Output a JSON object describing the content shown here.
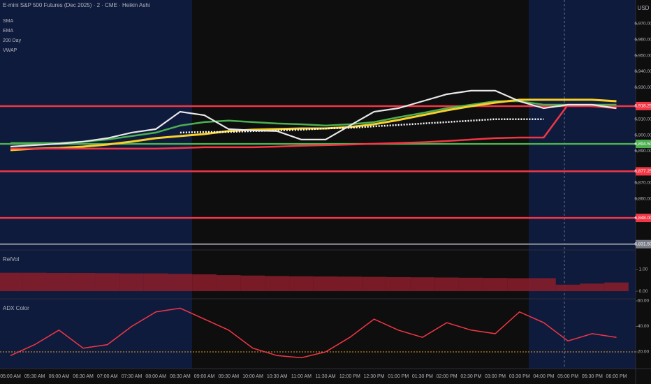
{
  "chart_data": [
    {
      "type": "line",
      "title": "E-mini S&P 500 Futures (Dec 2025) · 2 · CME · Heikin Ashi",
      "currency": "USD",
      "categories": [
        "05:00 AM",
        "05:30 AM",
        "06:00 AM",
        "06:30 AM",
        "07:00 AM",
        "07:30 AM",
        "08:00 AM",
        "08:30 AM",
        "09:00 AM",
        "09:30 AM",
        "10:00 AM",
        "10:30 AM",
        "11:00 AM",
        "11:30 AM",
        "12:00 PM",
        "12:30 PM",
        "01:00 PM",
        "01:30 PM",
        "02:00 PM",
        "02:30 PM",
        "03:00 PM",
        "03:30 PM",
        "04:00 PM",
        "05:00 PM",
        "05:30 PM",
        "06:00 PM"
      ],
      "values": [
        6892.8,
        6893.7,
        6894.6,
        6895.9,
        6898.1,
        6901.6,
        6903.8,
        6914.7,
        6912.5,
        6903.8,
        6902.9,
        6902.5,
        6897.2,
        6897.2,
        6906.0,
        6914.7,
        6916.9,
        6921.3,
        6925.7,
        6927.9,
        6927.9,
        6921.3,
        6916.9,
        6919.1,
        6919.1,
        6916.9
      ],
      "color": "#e8e8e8",
      "series": [
        {
          "name": "SMA",
          "color": "#4caf50",
          "values": [
            6895.0,
            6895.0,
            6895.0,
            6895.9,
            6897.2,
            6899.4,
            6901.6,
            6906.0,
            6908.2,
            6909.1,
            6908.2,
            6907.3,
            6906.8,
            6906.0,
            6906.8,
            6908.2,
            6911.2,
            6913.9,
            6916.9,
            6919.1,
            6921.3,
            6921.3,
            6919.1,
            6919.1,
            6919.1,
            6919.1
          ]
        },
        {
          "name": "EMA",
          "color": "#f7d02c",
          "values": [
            6890.6,
            6891.5,
            6891.9,
            6892.8,
            6894.1,
            6895.9,
            6898.1,
            6899.4,
            6900.7,
            6902.5,
            6903.4,
            6903.8,
            6904.2,
            6904.2,
            6905.1,
            6906.8,
            6909.5,
            6912.5,
            6915.6,
            6918.2,
            6920.4,
            6922.2,
            6922.2,
            6922.2,
            6922.2,
            6921.3
          ]
        },
        {
          "name": "200 Day",
          "color": "#f23645",
          "values": [
            6891.5,
            6891.5,
            6891.5,
            6891.5,
            6891.5,
            6891.5,
            6891.5,
            6891.9,
            6892.4,
            6892.4,
            6892.4,
            6892.8,
            6893.3,
            6893.7,
            6894.1,
            6894.6,
            6895.0,
            6895.5,
            6896.3,
            6897.2,
            6898.1,
            6898.5,
            6898.5,
            6919.1,
            6918.2,
            6916.9
          ]
        },
        {
          "name": "VWAP",
          "color": "#ffffff",
          "values": [
            null,
            null,
            null,
            null,
            null,
            null,
            null,
            6901.6,
            6902.0,
            6902.0,
            6902.5,
            6902.9,
            6903.4,
            6904.2,
            6904.6,
            6905.5,
            6906.4,
            6907.3,
            6908.2,
            6909.1,
            6910.0,
            6910.0,
            6910.0,
            null,
            null,
            null
          ]
        }
      ],
      "levels": [
        {
          "value": 6918.25,
          "label": "6,918.25",
          "color": "#f23645"
        },
        {
          "value": 6894.5,
          "label": "6,894.50",
          "color": "#4caf50"
        },
        {
          "value": 6877.25,
          "label": "6,877.25",
          "color": "#f23645"
        },
        {
          "value": 6848.0,
          "label": "6,848.00",
          "color": "#f23645"
        },
        {
          "value": 6831.5,
          "label": "6,831.50",
          "color": "#787b86"
        }
      ],
      "ylim": [
        6828.3,
        6984.9
      ],
      "yticks": [
        {
          "value": 6970,
          "label": "6,970.00"
        },
        {
          "value": 6960,
          "label": "6,960.00"
        },
        {
          "value": 6950,
          "label": "6,950.00"
        },
        {
          "value": 6940,
          "label": "6,940.00"
        },
        {
          "value": 6930,
          "label": "6,930.00"
        },
        {
          "value": 6910,
          "label": "6,910.00"
        },
        {
          "value": 6900,
          "label": "6,900.00"
        },
        {
          "value": 6890,
          "label": "6,890.00"
        },
        {
          "value": 6870,
          "label": "6,870.00"
        },
        {
          "value": 6860,
          "label": "6,860.00"
        }
      ]
    },
    {
      "type": "bar",
      "title": "RelVol",
      "color": "#8c1d2a",
      "values": [
        0.85,
        0.85,
        0.84,
        0.84,
        0.83,
        0.82,
        0.82,
        0.8,
        0.78,
        0.74,
        0.72,
        0.7,
        0.69,
        0.68,
        0.67,
        0.66,
        0.65,
        0.64,
        0.63,
        0.62,
        0.61,
        0.6,
        0.6,
        0.3,
        0.35,
        0.4
      ],
      "ylim": [
        -0.32,
        1.87
      ],
      "yticks": [
        {
          "value": 1,
          "label": "1.00"
        },
        {
          "value": 0,
          "label": "0.00"
        }
      ]
    },
    {
      "type": "line",
      "title": "ADX Color",
      "color": "#f23645",
      "threshold": 20,
      "values": [
        17.1,
        25.7,
        37.1,
        22.9,
        25.7,
        40.0,
        51.4,
        54.3,
        45.7,
        37.1,
        22.9,
        17.1,
        15.4,
        20.0,
        31.4,
        45.7,
        37.1,
        31.4,
        42.9,
        37.1,
        34.3,
        51.4,
        42.9,
        28.6,
        34.3,
        31.4
      ],
      "ylim": [
        7.4,
        61.1
      ],
      "yticks": [
        {
          "value": 60,
          "label": "60.00"
        },
        {
          "value": 40,
          "label": "40.00"
        },
        {
          "value": 20,
          "label": "20.00"
        }
      ]
    }
  ]
}
